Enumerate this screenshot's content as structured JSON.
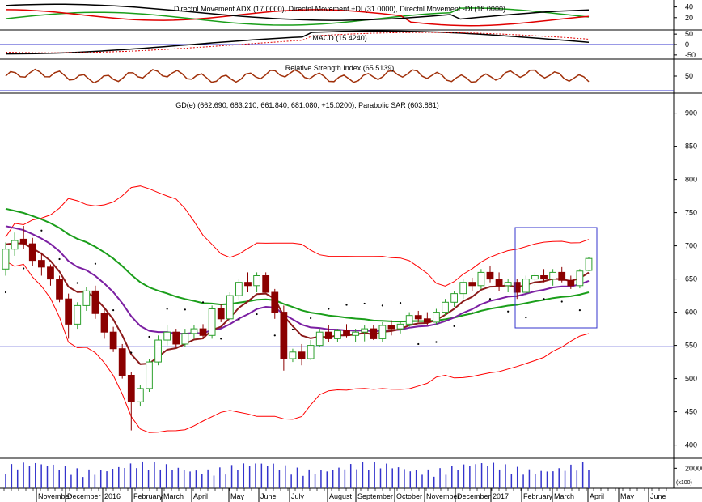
{
  "colors": {
    "up_candle": "#2ca02c",
    "down_candle": "#8b0000",
    "bollinger": "#ff0000",
    "sma_fast": "#8b1a1a",
    "sma_mid": "#7b1fa2",
    "sma_slow": "#1a9e1a",
    "sar": "#000000",
    "hline": "#3333cc",
    "rsi": "#a0300a",
    "adx": "#000000",
    "di_plus": "#1a9e1a",
    "di_minus": "#e00000",
    "volume": "#3333cc"
  },
  "chart_data": {
    "type": "candlestick",
    "x_labels": [
      "November",
      "December",
      "2016",
      "February",
      "March",
      "April",
      "May",
      "June",
      "July",
      "August",
      "September",
      "October",
      "November",
      "December",
      "2017",
      "February",
      "March",
      "April",
      "May",
      "June"
    ],
    "panels": {
      "adx": {
        "title": "Directnl Movement ADX (17.0000), Directnl Movement +DI (31.0000), Directnl Movement -DI (18.0000)",
        "y_ticks": [
          40,
          20
        ],
        "adx_value": 17.0,
        "di_plus_value": 31.0,
        "di_minus_value": 18.0
      },
      "macd": {
        "title": "MACD (15.4240)",
        "y_ticks": [
          50,
          0,
          -50
        ],
        "value": 15.424
      },
      "rsi": {
        "title": "Relative Strength Index (65.5139)",
        "y_ticks": [
          50
        ],
        "value": 65.5139
      },
      "price": {
        "title": "GD(e) (662.690, 683.210, 661.840, 681.080, +15.0200), Parabolic SAR (603.881)",
        "open": 662.69,
        "high": 683.21,
        "low": 661.84,
        "close": 681.08,
        "change": 15.02,
        "sar": 603.881,
        "y_ticks": [
          900,
          850,
          800,
          750,
          700,
          650,
          600,
          550,
          500,
          450,
          400
        ],
        "ylim": [
          380,
          930
        ],
        "horizontal_line": 548,
        "candles": [
          [
            665,
            705,
            655,
            695
          ],
          [
            695,
            720,
            685,
            708
          ],
          [
            710,
            730,
            695,
            703
          ],
          [
            703,
            712,
            670,
            678
          ],
          [
            678,
            690,
            655,
            668
          ],
          [
            668,
            672,
            640,
            650
          ],
          [
            650,
            655,
            615,
            620
          ],
          [
            620,
            628,
            560,
            582
          ],
          [
            582,
            615,
            575,
            610
          ],
          [
            610,
            638,
            602,
            632
          ],
          [
            632,
            640,
            590,
            598
          ],
          [
            598,
            605,
            560,
            570
          ],
          [
            570,
            578,
            540,
            545
          ],
          [
            545,
            552,
            500,
            505
          ],
          [
            505,
            510,
            422,
            465
          ],
          [
            465,
            490,
            458,
            485
          ],
          [
            485,
            530,
            480,
            525
          ],
          [
            525,
            565,
            520,
            558
          ],
          [
            558,
            580,
            550,
            570
          ],
          [
            570,
            575,
            548,
            552
          ],
          [
            552,
            575,
            548,
            568
          ],
          [
            568,
            580,
            560,
            575
          ],
          [
            575,
            582,
            560,
            565
          ],
          [
            565,
            610,
            560,
            605
          ],
          [
            605,
            612,
            585,
            590
          ],
          [
            590,
            630,
            585,
            625
          ],
          [
            625,
            650,
            618,
            645
          ],
          [
            645,
            660,
            630,
            640
          ],
          [
            640,
            660,
            630,
            655
          ],
          [
            655,
            660,
            630,
            630
          ],
          [
            630,
            635,
            590,
            600
          ],
          [
            600,
            610,
            512,
            530
          ],
          [
            530,
            545,
            525,
            540
          ],
          [
            540,
            552,
            520,
            530
          ],
          [
            530,
            558,
            528,
            550
          ],
          [
            550,
            575,
            548,
            570
          ],
          [
            570,
            580,
            555,
            560
          ],
          [
            560,
            575,
            555,
            572
          ],
          [
            572,
            582,
            562,
            565
          ],
          [
            565,
            575,
            555,
            570
          ],
          [
            570,
            580,
            556,
            575
          ],
          [
            575,
            580,
            558,
            560
          ],
          [
            560,
            585,
            555,
            580
          ],
          [
            580,
            588,
            565,
            575
          ],
          [
            575,
            585,
            568,
            582
          ],
          [
            582,
            600,
            578,
            595
          ],
          [
            595,
            602,
            585,
            590
          ],
          [
            590,
            600,
            580,
            585
          ],
          [
            585,
            605,
            580,
            600
          ],
          [
            600,
            620,
            595,
            615
          ],
          [
            615,
            632,
            608,
            628
          ],
          [
            628,
            650,
            620,
            645
          ],
          [
            645,
            652,
            632,
            640
          ],
          [
            640,
            665,
            635,
            660
          ],
          [
            660,
            670,
            645,
            650
          ],
          [
            650,
            660,
            632,
            640
          ],
          [
            640,
            650,
            630,
            645
          ],
          [
            645,
            650,
            620,
            630
          ],
          [
            630,
            655,
            625,
            650
          ],
          [
            650,
            660,
            640,
            655
          ],
          [
            655,
            665,
            645,
            650
          ],
          [
            650,
            665,
            640,
            660
          ],
          [
            660,
            668,
            645,
            648
          ],
          [
            648,
            655,
            635,
            640
          ],
          [
            640,
            665,
            636,
            662
          ],
          [
            663,
            683,
            662,
            681
          ]
        ]
      },
      "volume": {
        "y_ticks": [
          20000
        ],
        "unit_label": "(x100)"
      }
    }
  }
}
